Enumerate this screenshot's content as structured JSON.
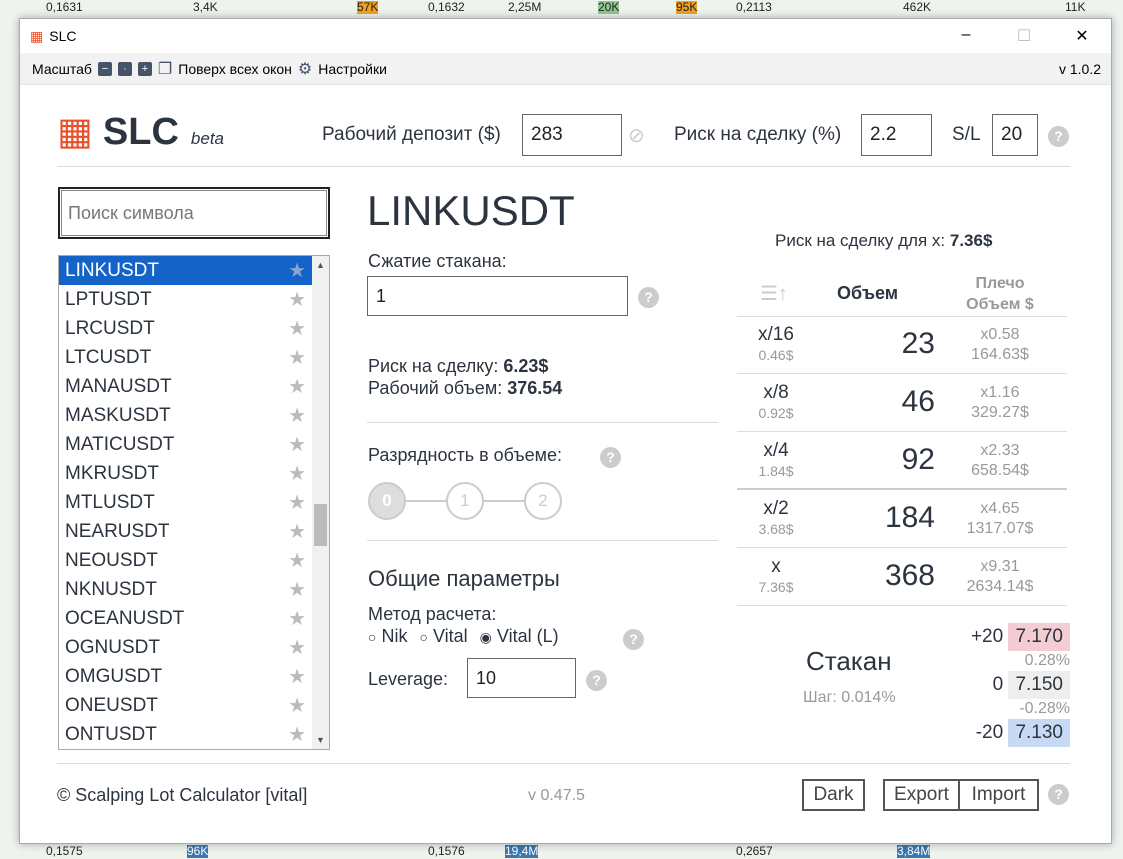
{
  "window": {
    "title": "SLC",
    "minimize": "–",
    "maximize": "☐",
    "close": "✕"
  },
  "toolbar": {
    "scale_label": "Масштаб",
    "minus": "−",
    "reset": "·",
    "plus": "+",
    "on_top": "Поверх всех окон",
    "settings": "Настройки",
    "version": "v 1.0.2"
  },
  "header": {
    "logo": "SLC",
    "beta": "beta",
    "deposit_label": "Рабочий депозит ($)",
    "deposit": "283",
    "risk_label": "Риск на сделку (%)",
    "risk": "2.2",
    "sl_label": "S/L",
    "sl": "20"
  },
  "search": {
    "placeholder": "Поиск символа"
  },
  "symbols": [
    "LINKUSDT",
    "LPTUSDT",
    "LRCUSDT",
    "LTCUSDT",
    "MANAUSDT",
    "MASKUSDT",
    "MATICUSDT",
    "MKRUSDT",
    "MTLUSDT",
    "NEARUSDT",
    "NEOUSDT",
    "NKNUSDT",
    "OCEANUSDT",
    "OGNUSDT",
    "OMGUSDT",
    "ONEUSDT",
    "ONTUSDT"
  ],
  "main": {
    "symbol": "LINKUSDT",
    "compress_label": "Сжатие стакана:",
    "compress": "1",
    "risk_label": "Риск на сделку: ",
    "risk": "6.23$",
    "volume_label": "Рабочий объем: ",
    "volume": "376.54",
    "digits_label": "Разрядность в объеме:",
    "digits": [
      "0",
      "1",
      "2"
    ],
    "digits_selected": "0",
    "general": "Общие параметры",
    "method_label": "Метод расчета:",
    "methods": [
      "Nik",
      "Vital",
      "Vital (L)"
    ],
    "method_selected": "Vital (L)",
    "leverage_label": "Leverage:",
    "leverage": "10"
  },
  "table": {
    "risk_x_label": "Риск на сделку для x: ",
    "risk_x": "7.36$",
    "col_volume": "Объем",
    "col_leverage": "Плечо",
    "col_volume_usd": "Объем $",
    "rows": [
      {
        "frac": "x/16",
        "risk": "0.46$",
        "volume": "23",
        "lev": "x0.58",
        "usd": "164.63$"
      },
      {
        "frac": "x/8",
        "risk": "0.92$",
        "volume": "46",
        "lev": "x1.16",
        "usd": "329.27$"
      },
      {
        "frac": "x/4",
        "risk": "1.84$",
        "volume": "92",
        "lev": "x2.33",
        "usd": "658.54$"
      },
      {
        "frac": "x/2",
        "risk": "3.68$",
        "volume": "184",
        "lev": "x4.65",
        "usd": "1317.07$"
      },
      {
        "frac": "x",
        "risk": "7.36$",
        "volume": "368",
        "lev": "x9.31",
        "usd": "2634.14$"
      }
    ]
  },
  "orderbook": {
    "title": "Стакан",
    "step": "Шаг: 0.014%",
    "up_ticks": "+20",
    "up_price": "7.170",
    "up_pct": "0.28%",
    "mid_ticks": "0",
    "mid_price": "7.150",
    "down_pct": "-0.28%",
    "down_ticks": "-20",
    "down_price": "7.130",
    "colors": {
      "up": "#f4cdd4",
      "mid": "#eeeeee",
      "down": "#c8daf3"
    }
  },
  "footer": {
    "copyright": "© Scalping Lot Calculator [vital]",
    "version": "v 0.47.5",
    "dark": "Dark",
    "export": "Export",
    "import": "Import"
  }
}
